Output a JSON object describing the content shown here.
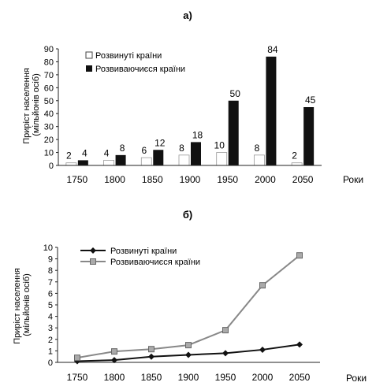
{
  "chart_data": [
    {
      "panel": "а)",
      "type": "bar",
      "categories": [
        "1750",
        "1800",
        "1850",
        "1900",
        "1950",
        "2000",
        "2050"
      ],
      "series": [
        {
          "name": "Розвинуті країни",
          "values": [
            2,
            4,
            6,
            8,
            10,
            8,
            2
          ],
          "color": "#ffffff"
        },
        {
          "name": "Розвиваючиєся країни",
          "values": [
            4,
            8,
            12,
            18,
            50,
            84,
            45
          ],
          "color": "#111111"
        }
      ],
      "data_labels": [
        [
          "2",
          "4",
          "6",
          "8",
          "10",
          "8",
          "2"
        ],
        [
          "4",
          "8",
          "12",
          "18",
          "50",
          "84",
          "45"
        ]
      ],
      "ylabel": "Приріст населення (мільйонів осіб)",
      "xlabel": "Роки",
      "ylim": [
        0,
        90
      ],
      "yticks": [
        "0",
        "10",
        "20",
        "30",
        "40",
        "50",
        "60",
        "70",
        "80",
        "90"
      ],
      "legend": "top-left",
      "grid": false
    },
    {
      "panel": "б)",
      "type": "line",
      "x": [
        "1750",
        "1800",
        "1850",
        "1900",
        "1950",
        "2000",
        "2050"
      ],
      "series": [
        {
          "name": "Розвинуті країни",
          "values": [
            0.1,
            0.2,
            0.5,
            0.65,
            0.8,
            1.1,
            1.55
          ],
          "color": "#111111",
          "marker": "diamond"
        },
        {
          "name": "Розвиваючиєся країни",
          "values": [
            0.4,
            0.95,
            1.15,
            1.5,
            2.8,
            6.7,
            9.3
          ],
          "color": "#888888",
          "marker": "square"
        }
      ],
      "ylabel": "Приріст населення (мільйонів осіб)",
      "xlabel": "Роки",
      "ylim": [
        0,
        10
      ],
      "yticks": [
        "0",
        "1",
        "2",
        "3",
        "4",
        "5",
        "6",
        "7",
        "8",
        "9",
        "10"
      ],
      "legend": "top-left",
      "grid": false
    }
  ]
}
